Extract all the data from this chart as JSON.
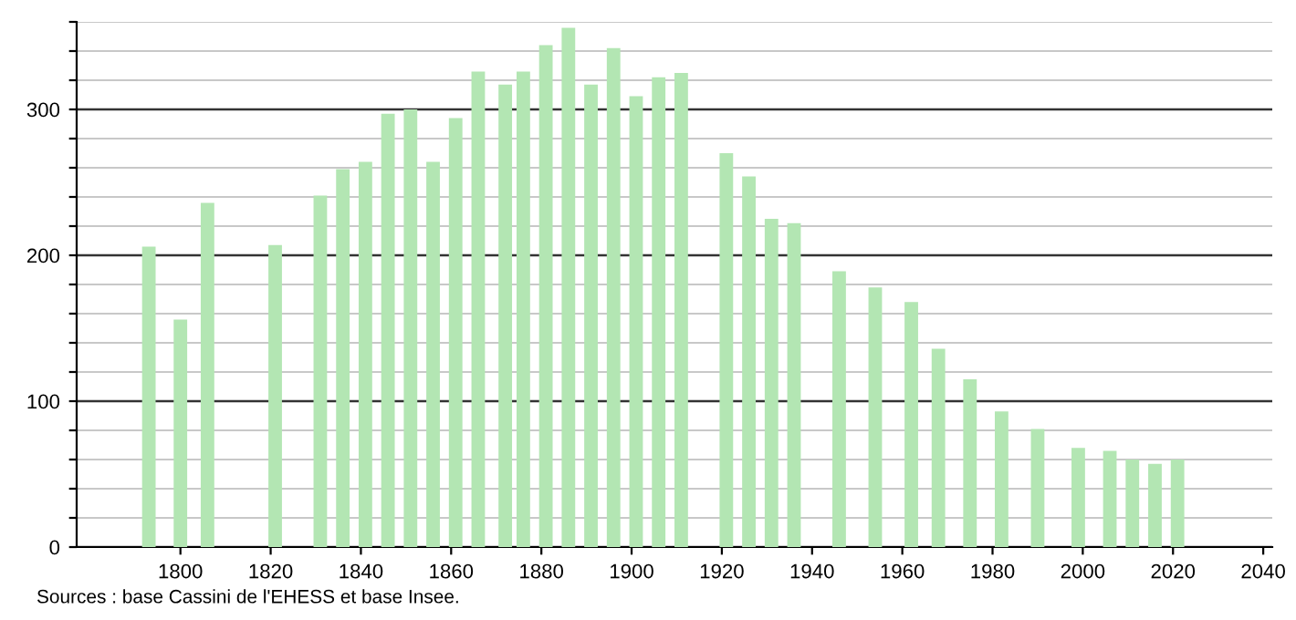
{
  "chart_data": {
    "type": "bar",
    "x": [
      1793,
      1800,
      1806,
      1821,
      1831,
      1836,
      1841,
      1846,
      1851,
      1856,
      1861,
      1866,
      1872,
      1876,
      1881,
      1886,
      1891,
      1896,
      1901,
      1906,
      1911,
      1921,
      1926,
      1931,
      1936,
      1946,
      1954,
      1962,
      1968,
      1975,
      1982,
      1990,
      1999,
      2006,
      2011,
      2016,
      2021
    ],
    "values": [
      206,
      156,
      236,
      207,
      241,
      259,
      264,
      297,
      300,
      264,
      294,
      326,
      317,
      326,
      344,
      356,
      317,
      342,
      309,
      322,
      325,
      270,
      254,
      225,
      222,
      189,
      178,
      168,
      136,
      115,
      93,
      81,
      68,
      66,
      60,
      57,
      60
    ],
    "color": "#b3e6b3",
    "xlim": [
      1777,
      2042
    ],
    "xticks": [
      1800,
      1820,
      1840,
      1860,
      1880,
      1900,
      1920,
      1940,
      1960,
      1980,
      2000,
      2020,
      2040
    ],
    "ylim": [
      0,
      360
    ],
    "yticks": [
      0,
      {
        "value": 20,
        "label": null
      },
      {
        "value": 40,
        "label": null
      },
      {
        "value": 60,
        "label": null
      },
      {
        "value": 80,
        "label": null
      },
      100,
      {
        "value": 120,
        "label": null
      },
      {
        "value": 140,
        "label": null
      },
      {
        "value": 160,
        "label": null
      },
      {
        "value": 180,
        "label": null
      },
      200,
      {
        "value": 220,
        "label": null
      },
      {
        "value": 240,
        "label": null
      },
      {
        "value": 260,
        "label": null
      },
      {
        "value": 280,
        "label": null
      },
      300,
      {
        "value": 320,
        "label": null
      },
      {
        "value": 340,
        "label": null
      },
      {
        "value": 360,
        "label": null
      }
    ],
    "grid": "y",
    "annotations": [
      "Sources : base Cassini de l'EHESS et base Insee."
    ]
  }
}
